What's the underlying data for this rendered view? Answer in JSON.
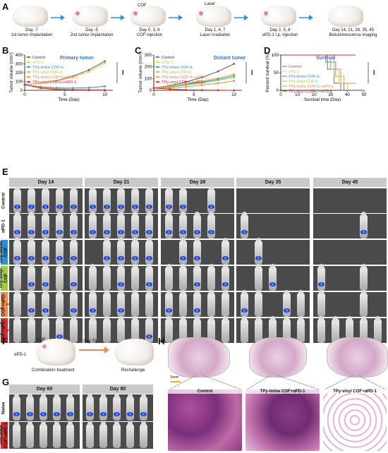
{
  "panels": {
    "A": "A",
    "B": "B",
    "C": "C",
    "D": "D",
    "E": "E",
    "F": "F",
    "G": "G",
    "H": "H"
  },
  "colors": {
    "control": "#666666",
    "apd1": "#f4c842",
    "imine": "#2c8fd8",
    "vinyl": "#9ccc42",
    "imine_apd1": "#f0894f",
    "vinyl_apd1": "#e3262d",
    "survival_title": "#3a6fd8",
    "header_bg": "#c9c9c9"
  },
  "timeline": [
    {
      "line1": "Day -7",
      "line2": "1st tumor implantation"
    },
    {
      "line1": "Day -5",
      "line2": "2nd tumor implantation"
    },
    {
      "line1": "Day 0, 3, 6",
      "line2": "COF injection"
    },
    {
      "line1": "Day 1, 4, 7",
      "line2": "Laser irradiation"
    },
    {
      "line1": "Day 2, 5, 8",
      "line2": "αPD-1 i.p. injection"
    },
    {
      "line1": "Day 14, 21, 28, 35, 45",
      "line2": "Bioluminescence imaging"
    }
  ],
  "timeline_tags": {
    "cof": "COF",
    "laser": "Laser"
  },
  "legend": [
    "Control",
    "αPD-1",
    "TPy-imine COF+L",
    "TPy-vinyl COF+L",
    "TPy-imine COF+L+αPD-1",
    "TPy-vinyl COF+L+αPD-1"
  ],
  "survival_legend": [
    "Control",
    "αPD-1",
    "TPy-imine COF+L",
    "TPy-vinyl COF+L",
    "TPy-imine COF+L+αPD-1",
    "TPy-vinyl COF+L+αPD-1"
  ],
  "chart_data": [
    {
      "type": "line",
      "title": "Primary tumor",
      "xlabel": "Time (Day)",
      "ylabel": "Tumor volume (mm³)",
      "xlim": [
        0,
        11
      ],
      "ylim": [
        0,
        400
      ],
      "xticks": [
        0,
        5,
        10
      ],
      "yticks": [
        0,
        100,
        200,
        300,
        400
      ],
      "significance": "***",
      "series": [
        {
          "name": "Control",
          "x": [
            0,
            2,
            4,
            6,
            8,
            10
          ],
          "y": [
            65,
            80,
            110,
            160,
            230,
            330
          ]
        },
        {
          "name": "αPD-1",
          "x": [
            0,
            2,
            4,
            6,
            8,
            10
          ],
          "y": [
            65,
            78,
            105,
            150,
            210,
            310
          ]
        },
        {
          "name": "TPy-imine COF+L",
          "x": [
            0,
            2,
            4,
            6,
            8,
            10
          ],
          "y": [
            65,
            40,
            28,
            25,
            30,
            45
          ]
        },
        {
          "name": "TPy-vinyl COF+L",
          "x": [
            0,
            2,
            4,
            6,
            8,
            10
          ],
          "y": [
            65,
            30,
            12,
            6,
            4,
            3
          ]
        },
        {
          "name": "TPy-imine COF+L+αPD-1",
          "x": [
            0,
            2,
            4,
            6,
            8,
            10
          ],
          "y": [
            65,
            35,
            20,
            12,
            8,
            8
          ]
        },
        {
          "name": "TPy-vinyl COF+L+αPD-1",
          "x": [
            0,
            2,
            4,
            6,
            8,
            10
          ],
          "y": [
            65,
            25,
            8,
            3,
            1,
            0
          ]
        }
      ]
    },
    {
      "type": "line",
      "title": "Distant tumor",
      "xlabel": "Time (Day)",
      "ylabel": "Tumor volume (mm³)",
      "xlim": [
        0,
        11
      ],
      "ylim": [
        0,
        300
      ],
      "xticks": [
        0,
        5,
        10
      ],
      "yticks": [
        0,
        100,
        200,
        300
      ],
      "significance": "***",
      "series": [
        {
          "name": "Control",
          "x": [
            0,
            2,
            4,
            6,
            8,
            10
          ],
          "y": [
            20,
            40,
            70,
            110,
            160,
            225
          ]
        },
        {
          "name": "αPD-1",
          "x": [
            0,
            2,
            4,
            6,
            8,
            10
          ],
          "y": [
            20,
            35,
            55,
            80,
            105,
            140
          ]
        },
        {
          "name": "TPy-imine COF+L",
          "x": [
            0,
            2,
            4,
            6,
            8,
            10
          ],
          "y": [
            20,
            30,
            50,
            70,
            95,
            125
          ]
        },
        {
          "name": "TPy-vinyl COF+L",
          "x": [
            0,
            2,
            4,
            6,
            8,
            10
          ],
          "y": [
            20,
            28,
            45,
            62,
            85,
            110
          ]
        },
        {
          "name": "TPy-imine COF+L+αPD-1",
          "x": [
            0,
            2,
            4,
            6,
            8,
            10
          ],
          "y": [
            20,
            22,
            30,
            45,
            60,
            80
          ]
        },
        {
          "name": "TPy-vinyl COF+L+αPD-1",
          "x": [
            0,
            2,
            4,
            6,
            8,
            10
          ],
          "y": [
            20,
            10,
            4,
            2,
            1,
            0
          ]
        }
      ]
    },
    {
      "type": "line",
      "title": "Survival",
      "xlabel": "Survival time (Day)",
      "ylabel": "Percent survival (%)",
      "xlim": [
        0,
        50
      ],
      "ylim": [
        0,
        100
      ],
      "xticks": [
        0,
        10,
        20,
        30,
        40,
        50
      ],
      "yticks": [
        0,
        50,
        100
      ],
      "significance": "***",
      "series": [
        {
          "name": "Control",
          "x": [
            0,
            28,
            28,
            32,
            32,
            36,
            36
          ],
          "y": [
            100,
            100,
            60,
            60,
            20,
            20,
            0
          ]
        },
        {
          "name": "αPD-1",
          "x": [
            0,
            30,
            30,
            35,
            35,
            40,
            40
          ],
          "y": [
            100,
            100,
            60,
            60,
            20,
            20,
            0
          ]
        },
        {
          "name": "TPy-imine COF+L",
          "x": [
            0,
            27,
            27,
            33,
            33,
            38,
            38
          ],
          "y": [
            100,
            100,
            80,
            80,
            40,
            40,
            0
          ]
        },
        {
          "name": "TPy-vinyl COF+L",
          "x": [
            0,
            32,
            32,
            38,
            38,
            45
          ],
          "y": [
            100,
            100,
            40,
            40,
            20,
            20
          ]
        },
        {
          "name": "TPy-imine COF+L+αPD-1",
          "x": [
            0,
            30,
            30,
            36,
            36,
            45
          ],
          "y": [
            100,
            100,
            60,
            60,
            20,
            20
          ]
        },
        {
          "name": "TPy-vinyl COF+L+αPD-1",
          "x": [
            0,
            45
          ],
          "y": [
            100,
            100
          ]
        }
      ]
    }
  ],
  "panelE": {
    "days": [
      "Day 14",
      "Day 21",
      "Day 28",
      "Day 35",
      "Day 45"
    ],
    "rows": [
      "Control",
      "αPD-1",
      "TPy-imine COF",
      "TPy-vinyl COF",
      "TPy-imine COF+αPD-1",
      "TPy-vinyl COF+αPD-1"
    ],
    "row_colors": [
      "#ffffff",
      "#ffffff",
      "#2c8fd8",
      "#9ccc42",
      "#f0894f",
      "#e3262d"
    ],
    "alive": [
      [
        [
          1,
          1,
          1,
          1,
          1
        ],
        [
          1,
          1,
          1,
          1,
          1
        ],
        [
          1,
          1,
          0,
          1,
          0
        ],
        [
          0,
          0,
          0,
          0,
          0
        ],
        [
          0,
          0,
          0,
          0,
          0
        ]
      ],
      [
        [
          1,
          1,
          1,
          1,
          1
        ],
        [
          1,
          1,
          1,
          1,
          1
        ],
        [
          1,
          1,
          1,
          1,
          0
        ],
        [
          1,
          0,
          0,
          0,
          0
        ],
        [
          0,
          0,
          0,
          1,
          0
        ]
      ],
      [
        [
          1,
          1,
          1,
          1,
          1
        ],
        [
          0,
          1,
          1,
          1,
          1
        ],
        [
          0,
          1,
          1,
          0,
          1
        ],
        [
          0,
          1,
          0,
          0,
          0
        ],
        [
          0,
          0,
          0,
          0,
          0
        ]
      ],
      [
        [
          1,
          1,
          1,
          1,
          1
        ],
        [
          1,
          1,
          1,
          1,
          1
        ],
        [
          1,
          1,
          1,
          1,
          1
        ],
        [
          0,
          1,
          1,
          0,
          0
        ],
        [
          1,
          0,
          0,
          1,
          0
        ]
      ],
      [
        [
          1,
          1,
          1,
          1,
          1
        ],
        [
          1,
          1,
          1,
          1,
          1
        ],
        [
          1,
          1,
          1,
          1,
          1
        ],
        [
          1,
          1,
          0,
          1,
          1
        ],
        [
          1,
          0,
          0,
          1,
          0
        ]
      ],
      [
        [
          1,
          1,
          1,
          1,
          1
        ],
        [
          1,
          1,
          1,
          1,
          1
        ],
        [
          1,
          1,
          1,
          1,
          1
        ],
        [
          1,
          1,
          1,
          1,
          1
        ],
        [
          1,
          1,
          1,
          1,
          1
        ]
      ]
    ],
    "signal": [
      [
        [
          1,
          1,
          1,
          1,
          1
        ],
        [
          1,
          1,
          1,
          1,
          1
        ],
        [
          1,
          1,
          0,
          1,
          0
        ],
        [
          0,
          0,
          0,
          0,
          0
        ],
        [
          0,
          0,
          0,
          0,
          0
        ]
      ],
      [
        [
          1,
          1,
          1,
          1,
          1
        ],
        [
          1,
          1,
          1,
          1,
          1
        ],
        [
          1,
          1,
          1,
          1,
          0
        ],
        [
          1,
          0,
          0,
          0,
          0
        ],
        [
          0,
          0,
          0,
          1,
          0
        ]
      ],
      [
        [
          1,
          1,
          1,
          1,
          1
        ],
        [
          0,
          1,
          1,
          1,
          1
        ],
        [
          0,
          1,
          1,
          0,
          1
        ],
        [
          0,
          1,
          0,
          0,
          0
        ],
        [
          0,
          0,
          0,
          0,
          0
        ]
      ],
      [
        [
          0,
          1,
          1,
          0,
          1
        ],
        [
          0,
          0,
          1,
          0,
          1
        ],
        [
          0,
          0,
          1,
          0,
          1
        ],
        [
          0,
          0,
          1,
          0,
          0
        ],
        [
          1,
          0,
          0,
          0,
          0
        ]
      ],
      [
        [
          0,
          1,
          1,
          0,
          1
        ],
        [
          1,
          0,
          1,
          0,
          0
        ],
        [
          1,
          0,
          1,
          0,
          0
        ],
        [
          1,
          0,
          0,
          1,
          0
        ],
        [
          0,
          0,
          0,
          0,
          0
        ]
      ],
      [
        [
          0,
          0,
          0,
          1,
          0
        ],
        [
          0,
          0,
          0,
          0,
          1
        ],
        [
          0,
          0,
          0,
          0,
          0
        ],
        [
          0,
          0,
          0,
          0,
          0
        ],
        [
          0,
          0,
          0,
          0,
          0
        ]
      ]
    ]
  },
  "panelF": {
    "cof": "COF",
    "apd1": "αPD-1",
    "day": "Day 70",
    "step1": "Combination treatment",
    "step2": "Rechallenge"
  },
  "panelG": {
    "days": [
      "Day 60",
      "Day 80"
    ],
    "rows": [
      "Naive",
      "TPy-vinyl COF+αPD-1"
    ]
  },
  "panelH": {
    "scale": "1mm",
    "labels": [
      "Control",
      "TPy-imine COF+αPD-1",
      "TPy-vinyl COF+αPD-1"
    ]
  }
}
